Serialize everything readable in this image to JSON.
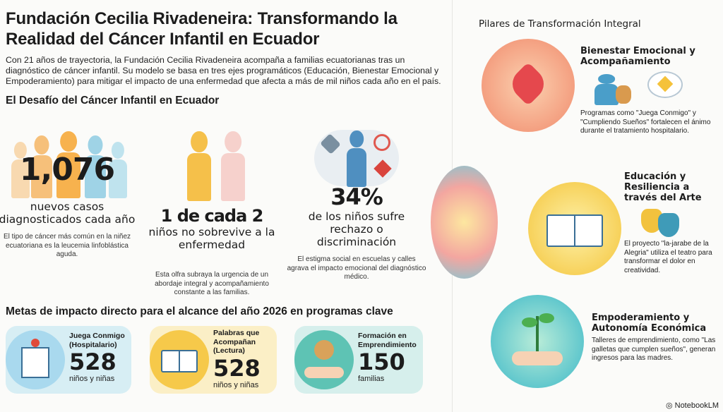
{
  "title": "Fundación Cecilia Rivadeneira: Transformando la Realidad del Cáncer Infantil en Ecuador",
  "intro": "Con 21 años de trayectoria, la Fundación Cecilia Rivadeneira acompaña a familias ecuatorianas tras un diagnóstico de cáncer infantil. Su modelo se basa en tres ejes programáticos (Educación, Bienestar Emocional y Empoderamiento) para mitigar el impacto de una enfermedad que afecta a más de mil niños cada año en el país.",
  "challenge": {
    "heading": "El Desafío del Cáncer Infantil en Ecuador",
    "stats": [
      {
        "value": "1,076",
        "label": "nuevos casos diagnosticados cada año",
        "desc": "El tipo de cáncer más común en la niñez ecuatoriana es la leucemia linfoblástica aguda.",
        "icon": "people-crowd-icon"
      },
      {
        "value": "1 de cada 2",
        "label": "niños no sobrevive a la enfermedad",
        "desc": "Esta olfra subraya la urgencia de un abordaje integral y acompañamiento constante a las familias.",
        "icon": "two-children-icon"
      },
      {
        "value": "34%",
        "label": "de los niños sufre rechazo o discriminación",
        "desc": "El estigma social en escuelas y calles agrava el impacto emocional del diagnóstico médico.",
        "icon": "rejected-child-icon"
      }
    ]
  },
  "goals": {
    "heading": "Metas de impacto directo para el alcance del año 2026 en programas clave",
    "cards": [
      {
        "title": "Juega Conmigo (Hospitalario)",
        "value": "528",
        "unit": "niños y niñas",
        "icon": "hospital-icon",
        "color": "#cfe9f2"
      },
      {
        "title": "Palabras que Acompañan (Lectura)",
        "value": "528",
        "unit": "niños y niñas",
        "icon": "music-book-icon",
        "color": "#fbefc6"
      },
      {
        "title": "Formación en Emprendimiento",
        "value": "150",
        "unit": "familias",
        "icon": "cookie-hand-icon",
        "color": "#d6efec"
      }
    ]
  },
  "pillars": {
    "heading": "Pilares de Transformación Integral",
    "items": [
      {
        "title": "Bienestar Emocional y Acompañamiento",
        "desc": "Programas como \"Juega Conmigo\" y \"Cumpliendo Sueños\" fortalecen el ánimo durante el tratamiento hospitalario.",
        "icon": "heart-hands-icon"
      },
      {
        "title": "Educación y Resiliencia a través del Arte",
        "desc": "El proyecto \"la-jarabe de la Alegria\" utiliza el teatro para transformar el dolor en creatividad.",
        "icon": "book-brush-icon"
      },
      {
        "title": "Empoderamiento y Autonomía Económica",
        "desc": "Talleres de emprendimiento, como \"Las galletas que cumplen sueños\", generan ingresos para las madres.",
        "icon": "sprout-hand-icon"
      }
    ]
  },
  "footer": {
    "brand": "NotebookLM"
  }
}
